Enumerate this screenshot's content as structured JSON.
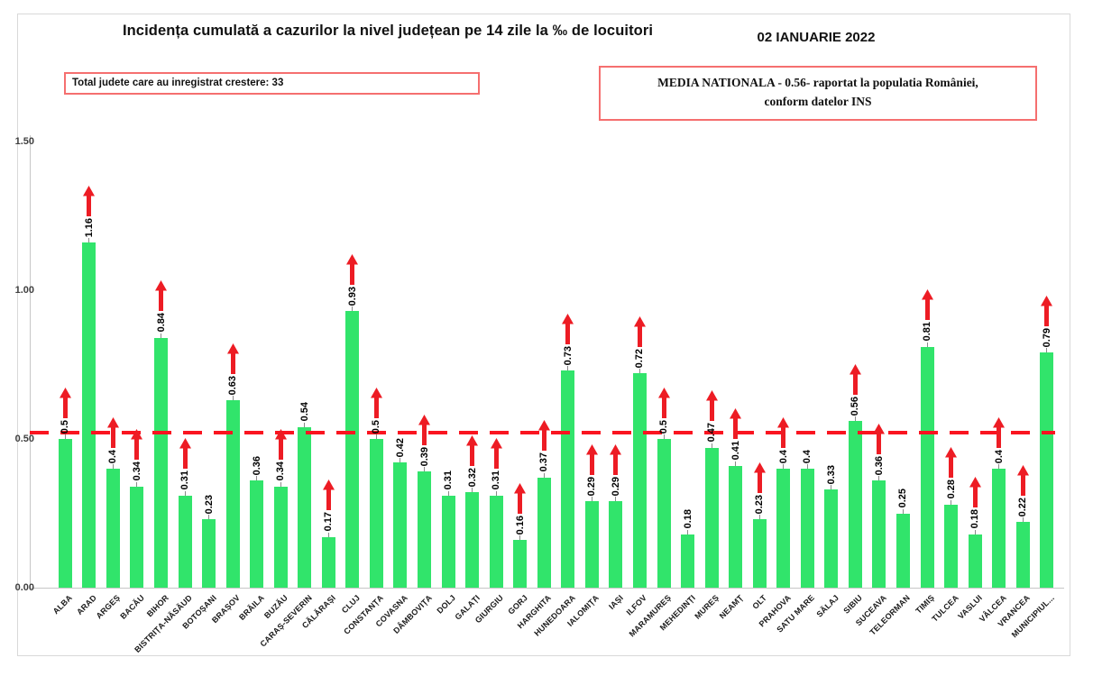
{
  "header": {
    "title": "Incidența cumulată a cazurilor la nivel județean pe 14 zile la ‰ de locuitori",
    "date": "02 IANUARIE 2022",
    "total_box_text": "Total judete care au inregistrat crestere: 33",
    "media_box_line1": "MEDIA NATIONALA - 0.56-  raportat la populatia  României,",
    "media_box_line2": "conform datelor INS"
  },
  "chart_data": {
    "type": "bar",
    "title": "Incidența cumulată a cazurilor la nivel județean pe 14 zile la ‰ de locuitori",
    "xlabel": "",
    "ylabel": "",
    "ylim": [
      0,
      1.5
    ],
    "y_ticks": [
      "0.00",
      "0.50",
      "1.00",
      "1.50"
    ],
    "grid": false,
    "legend": false,
    "national_average": 0.56,
    "reference_line_value": 0.52,
    "total_counties_with_increase": 33,
    "bar_color": "#31e46b",
    "arrow_color": "#ed1c24",
    "reference_line_color": "#fa1420",
    "categories": [
      "ALBA",
      "ARAD",
      "ARGEȘ",
      "BACĂU",
      "BIHOR",
      "BISTRIȚA-NĂSĂUD",
      "BOTOȘANI",
      "BRAȘOV",
      "BRĂILA",
      "BUZĂU",
      "CARAȘ-SEVERIN",
      "CĂLĂRAȘI",
      "CLUJ",
      "CONSTANȚA",
      "COVASNA",
      "DÂMBOVIȚA",
      "DOLJ",
      "GALAȚI",
      "GIURGIU",
      "GORJ",
      "HARGHITA",
      "HUNEDOARA",
      "IALOMIȚA",
      "IAȘI",
      "ILFOV",
      "MARAMUREȘ",
      "MEHEDINȚI",
      "MUREȘ",
      "NEAMȚ",
      "OLT",
      "PRAHOVA",
      "SATU MARE",
      "SĂLAJ",
      "SIBIU",
      "SUCEAVA",
      "TELEORMAN",
      "TIMIȘ",
      "TULCEA",
      "VASLUI",
      "VÂLCEA",
      "VRANCEA",
      "MUNICIPIUL..."
    ],
    "values": [
      0.5,
      1.16,
      0.4,
      0.34,
      0.84,
      0.31,
      0.23,
      0.63,
      0.36,
      0.34,
      0.54,
      0.17,
      0.93,
      0.5,
      0.42,
      0.39,
      0.31,
      0.32,
      0.31,
      0.16,
      0.37,
      0.73,
      0.29,
      0.29,
      0.72,
      0.5,
      0.18,
      0.47,
      0.41,
      0.23,
      0.4,
      0.4,
      0.33,
      0.56,
      0.36,
      0.25,
      0.81,
      0.28,
      0.18,
      0.4,
      0.22,
      0.79
    ],
    "value_labels": [
      "0.5",
      "1.16",
      "0.4",
      "0.34",
      "0.84",
      "0.31",
      "0.23",
      "0.63",
      "0.36",
      "0.34",
      "0.54",
      "0.17",
      "0.93",
      "0.5",
      "0.42",
      "0.39",
      "0.31",
      "0.32",
      "0.31",
      "0.16",
      "0.37",
      "0.73",
      "0.29",
      "0.29",
      "0.72",
      "0.5",
      "0.18",
      "0.47",
      "0.41",
      "0.23",
      "0.4",
      "0.4",
      "0.33",
      "0.56",
      "0.36",
      "0.25",
      "0.81",
      "0.28",
      "0.18",
      "0.4",
      "0.22",
      "0.79"
    ],
    "increase_flags": [
      true,
      true,
      true,
      true,
      true,
      true,
      false,
      true,
      false,
      true,
      false,
      true,
      true,
      true,
      false,
      true,
      false,
      true,
      true,
      true,
      true,
      true,
      true,
      true,
      true,
      true,
      false,
      true,
      true,
      true,
      true,
      false,
      false,
      true,
      true,
      false,
      true,
      true,
      true,
      true,
      true,
      true
    ]
  }
}
